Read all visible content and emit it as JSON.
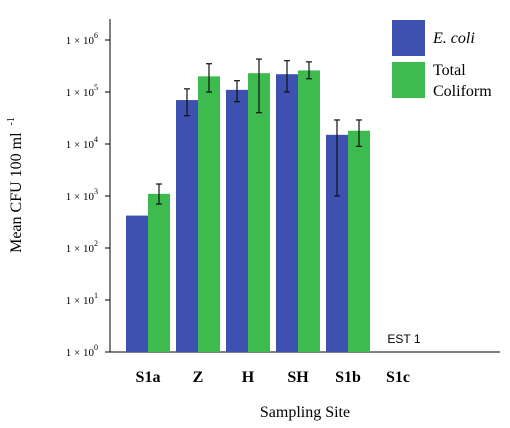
{
  "chart_data": {
    "type": "bar",
    "xlabel": "Sampling Site",
    "ylabel": "Mean CFU 100 ml",
    "ylabel_superscript": "-1",
    "y_scale": "log",
    "ylim": [
      1,
      10000000
    ],
    "y_ticks": [
      {
        "value": 1,
        "base": "1 × 10",
        "exp": "0"
      },
      {
        "value": 10,
        "base": "1 × 10",
        "exp": "1"
      },
      {
        "value": 100,
        "base": "1 × 10",
        "exp": "2"
      },
      {
        "value": 1000,
        "base": "1 × 10",
        "exp": "3"
      },
      {
        "value": 10000,
        "base": "1 × 10",
        "exp": "4"
      },
      {
        "value": 100000,
        "base": "1 × 10",
        "exp": "5"
      },
      {
        "value": 1000000,
        "base": "1 × 10",
        "exp": "6"
      }
    ],
    "categories": [
      "S1a",
      "Z",
      "H",
      "SH",
      "S1b",
      "S1c"
    ],
    "series": [
      {
        "name": "E. coli",
        "color": "#3f51b0",
        "values": [
          420,
          70000,
          110000,
          220000,
          15000,
          null
        ],
        "err_low": [
          null,
          35000,
          65000,
          100000,
          1000,
          null
        ],
        "err_high": [
          null,
          115000,
          165000,
          400000,
          29000,
          null
        ]
      },
      {
        "name": "Total Coliform",
        "color": "#3dbb4f",
        "values": [
          1100,
          200000,
          230000,
          260000,
          18000,
          null
        ],
        "err_low": [
          700,
          100000,
          40000,
          180000,
          9000,
          null
        ],
        "err_high": [
          1700,
          350000,
          430000,
          380000,
          29000,
          null
        ]
      }
    ],
    "legend": {
      "position": "top-right",
      "entries": [
        {
          "line1": "E. coli",
          "line2": "",
          "italic": true
        },
        {
          "line1": "Total",
          "line2": "Coliform",
          "italic": false
        }
      ]
    },
    "annotations": [
      {
        "text": "EST 1",
        "category": "S1c"
      }
    ],
    "grid": false
  }
}
